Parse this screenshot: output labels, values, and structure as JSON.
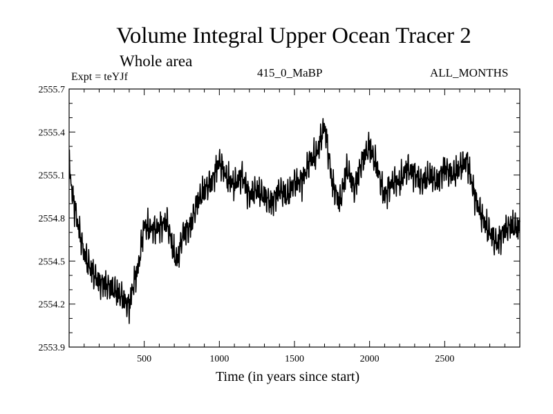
{
  "chart_data": {
    "type": "line",
    "title": "Volume Integral Upper Ocean Tracer 2",
    "subtitle": "Whole area",
    "expt_label": "Expt = teYJf",
    "period_label": "415_0_MaBP",
    "months_label": "ALL_MONTHS",
    "xlabel": "Time (in years since start)",
    "ylabel": "",
    "xlim": [
      0,
      3000
    ],
    "ylim": [
      2553.9,
      2555.7
    ],
    "xticks": [
      500,
      1000,
      1500,
      2000,
      2500
    ],
    "yticks": [
      2553.9,
      2554.2,
      2554.5,
      2554.8,
      2555.1,
      2555.4,
      2555.7
    ],
    "ytick_labels": [
      "2553.9",
      "2554.2",
      "2554.5",
      "2554.8",
      "2555.1",
      "2555.4",
      "2555.7"
    ],
    "line_color": "#000000",
    "series": [
      {
        "name": "Tracer 2",
        "x": [
          0,
          20,
          50,
          100,
          150,
          200,
          250,
          300,
          350,
          400,
          430,
          460,
          500,
          550,
          600,
          650,
          700,
          720,
          760,
          800,
          850,
          900,
          950,
          1000,
          1050,
          1100,
          1150,
          1200,
          1250,
          1300,
          1350,
          1400,
          1450,
          1500,
          1550,
          1600,
          1650,
          1700,
          1720,
          1750,
          1800,
          1850,
          1900,
          1950,
          2000,
          2050,
          2100,
          2150,
          2200,
          2250,
          2300,
          2350,
          2400,
          2450,
          2500,
          2550,
          2600,
          2650,
          2700,
          2750,
          2800,
          2850,
          2900,
          2950,
          3000
        ],
        "y": [
          2555.2,
          2554.97,
          2554.8,
          2554.55,
          2554.43,
          2554.35,
          2554.33,
          2554.3,
          2554.25,
          2554.18,
          2554.35,
          2554.45,
          2554.75,
          2554.72,
          2554.73,
          2554.78,
          2554.55,
          2554.5,
          2554.7,
          2554.72,
          2554.9,
          2555.0,
          2555.05,
          2555.2,
          2555.08,
          2555.03,
          2555.1,
          2554.95,
          2555.0,
          2554.95,
          2554.9,
          2555.0,
          2554.95,
          2555.05,
          2555.05,
          2555.2,
          2555.25,
          2555.45,
          2555.3,
          2555.05,
          2554.9,
          2555.15,
          2555.0,
          2555.2,
          2555.3,
          2555.15,
          2554.95,
          2555.05,
          2555.05,
          2555.15,
          2555.1,
          2555.05,
          2555.1,
          2555.05,
          2555.15,
          2555.1,
          2555.15,
          2555.2,
          2554.95,
          2554.8,
          2554.7,
          2554.62,
          2554.72,
          2554.75,
          2554.72
        ]
      }
    ]
  }
}
